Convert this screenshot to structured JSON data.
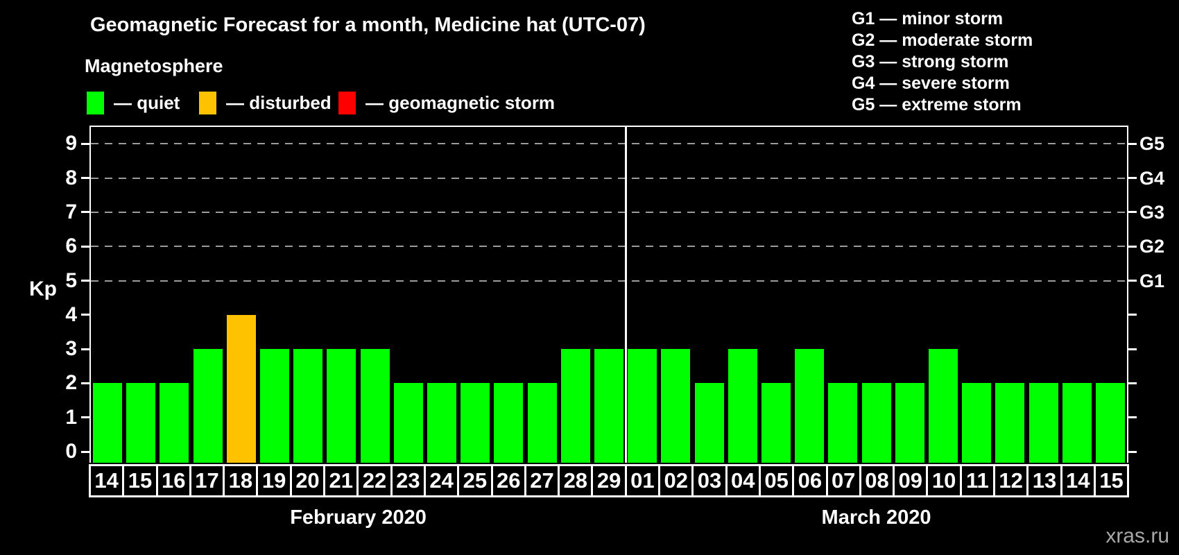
{
  "title": "Geomagnetic Forecast for a month, Medicine hat (UTC-07)",
  "subtitle": "Magnetosphere",
  "legend": [
    {
      "key": "quiet",
      "label": "— quiet",
      "color": "#00ff00"
    },
    {
      "key": "disturbed",
      "label": "— disturbed",
      "color": "#ffc200"
    },
    {
      "key": "storm",
      "label": "— geomagnetic storm",
      "color": "#ff0000"
    }
  ],
  "g_scale_legend": [
    {
      "code": "G1",
      "label": "G1 — minor storm"
    },
    {
      "code": "G2",
      "label": "G2 — moderate storm"
    },
    {
      "code": "G3",
      "label": "G3 — strong storm"
    },
    {
      "code": "G4",
      "label": "G4 — severe storm"
    },
    {
      "code": "G5",
      "label": "G5 — extreme storm"
    }
  ],
  "watermark": "xras.ru",
  "chart_data": {
    "type": "bar",
    "title": "Geomagnetic Forecast for a month, Medicine hat (UTC-07)",
    "ylabel": "Kp",
    "ylim": [
      0,
      9
    ],
    "y_ticks": [
      0,
      1,
      2,
      3,
      4,
      5,
      6,
      7,
      8,
      9
    ],
    "gridlines_at": [
      5,
      6,
      7,
      8,
      9
    ],
    "grid_style": "dashed horizontal gray lines at Kp 5-9 only",
    "legend_position": "top-left",
    "right_axis": [
      {
        "kp": 5,
        "label": "G1"
      },
      {
        "kp": 6,
        "label": "G2"
      },
      {
        "kp": 7,
        "label": "G3"
      },
      {
        "kp": 8,
        "label": "G4"
      },
      {
        "kp": 9,
        "label": "G5"
      }
    ],
    "colors": {
      "quiet": "#00ff00",
      "disturbed": "#ffc200",
      "storm": "#ff0000"
    },
    "months": [
      {
        "label": "February 2020",
        "days": [
          "14",
          "15",
          "16",
          "17",
          "18",
          "19",
          "20",
          "21",
          "22",
          "23",
          "24",
          "25",
          "26",
          "27",
          "28",
          "29"
        ],
        "values": [
          2,
          2,
          2,
          3,
          4,
          3,
          3,
          3,
          3,
          2,
          2,
          2,
          2,
          2,
          3,
          3
        ],
        "status": [
          "quiet",
          "quiet",
          "quiet",
          "quiet",
          "disturbed",
          "quiet",
          "quiet",
          "quiet",
          "quiet",
          "quiet",
          "quiet",
          "quiet",
          "quiet",
          "quiet",
          "quiet",
          "quiet"
        ]
      },
      {
        "label": "March 2020",
        "days": [
          "01",
          "02",
          "03",
          "04",
          "05",
          "06",
          "07",
          "08",
          "09",
          "10",
          "11",
          "12",
          "13",
          "14",
          "15"
        ],
        "values": [
          3,
          3,
          2,
          3,
          2,
          3,
          2,
          2,
          2,
          3,
          2,
          2,
          2,
          2,
          2
        ],
        "status": [
          "quiet",
          "quiet",
          "quiet",
          "quiet",
          "quiet",
          "quiet",
          "quiet",
          "quiet",
          "quiet",
          "quiet",
          "quiet",
          "quiet",
          "quiet",
          "quiet",
          "quiet"
        ]
      }
    ]
  }
}
